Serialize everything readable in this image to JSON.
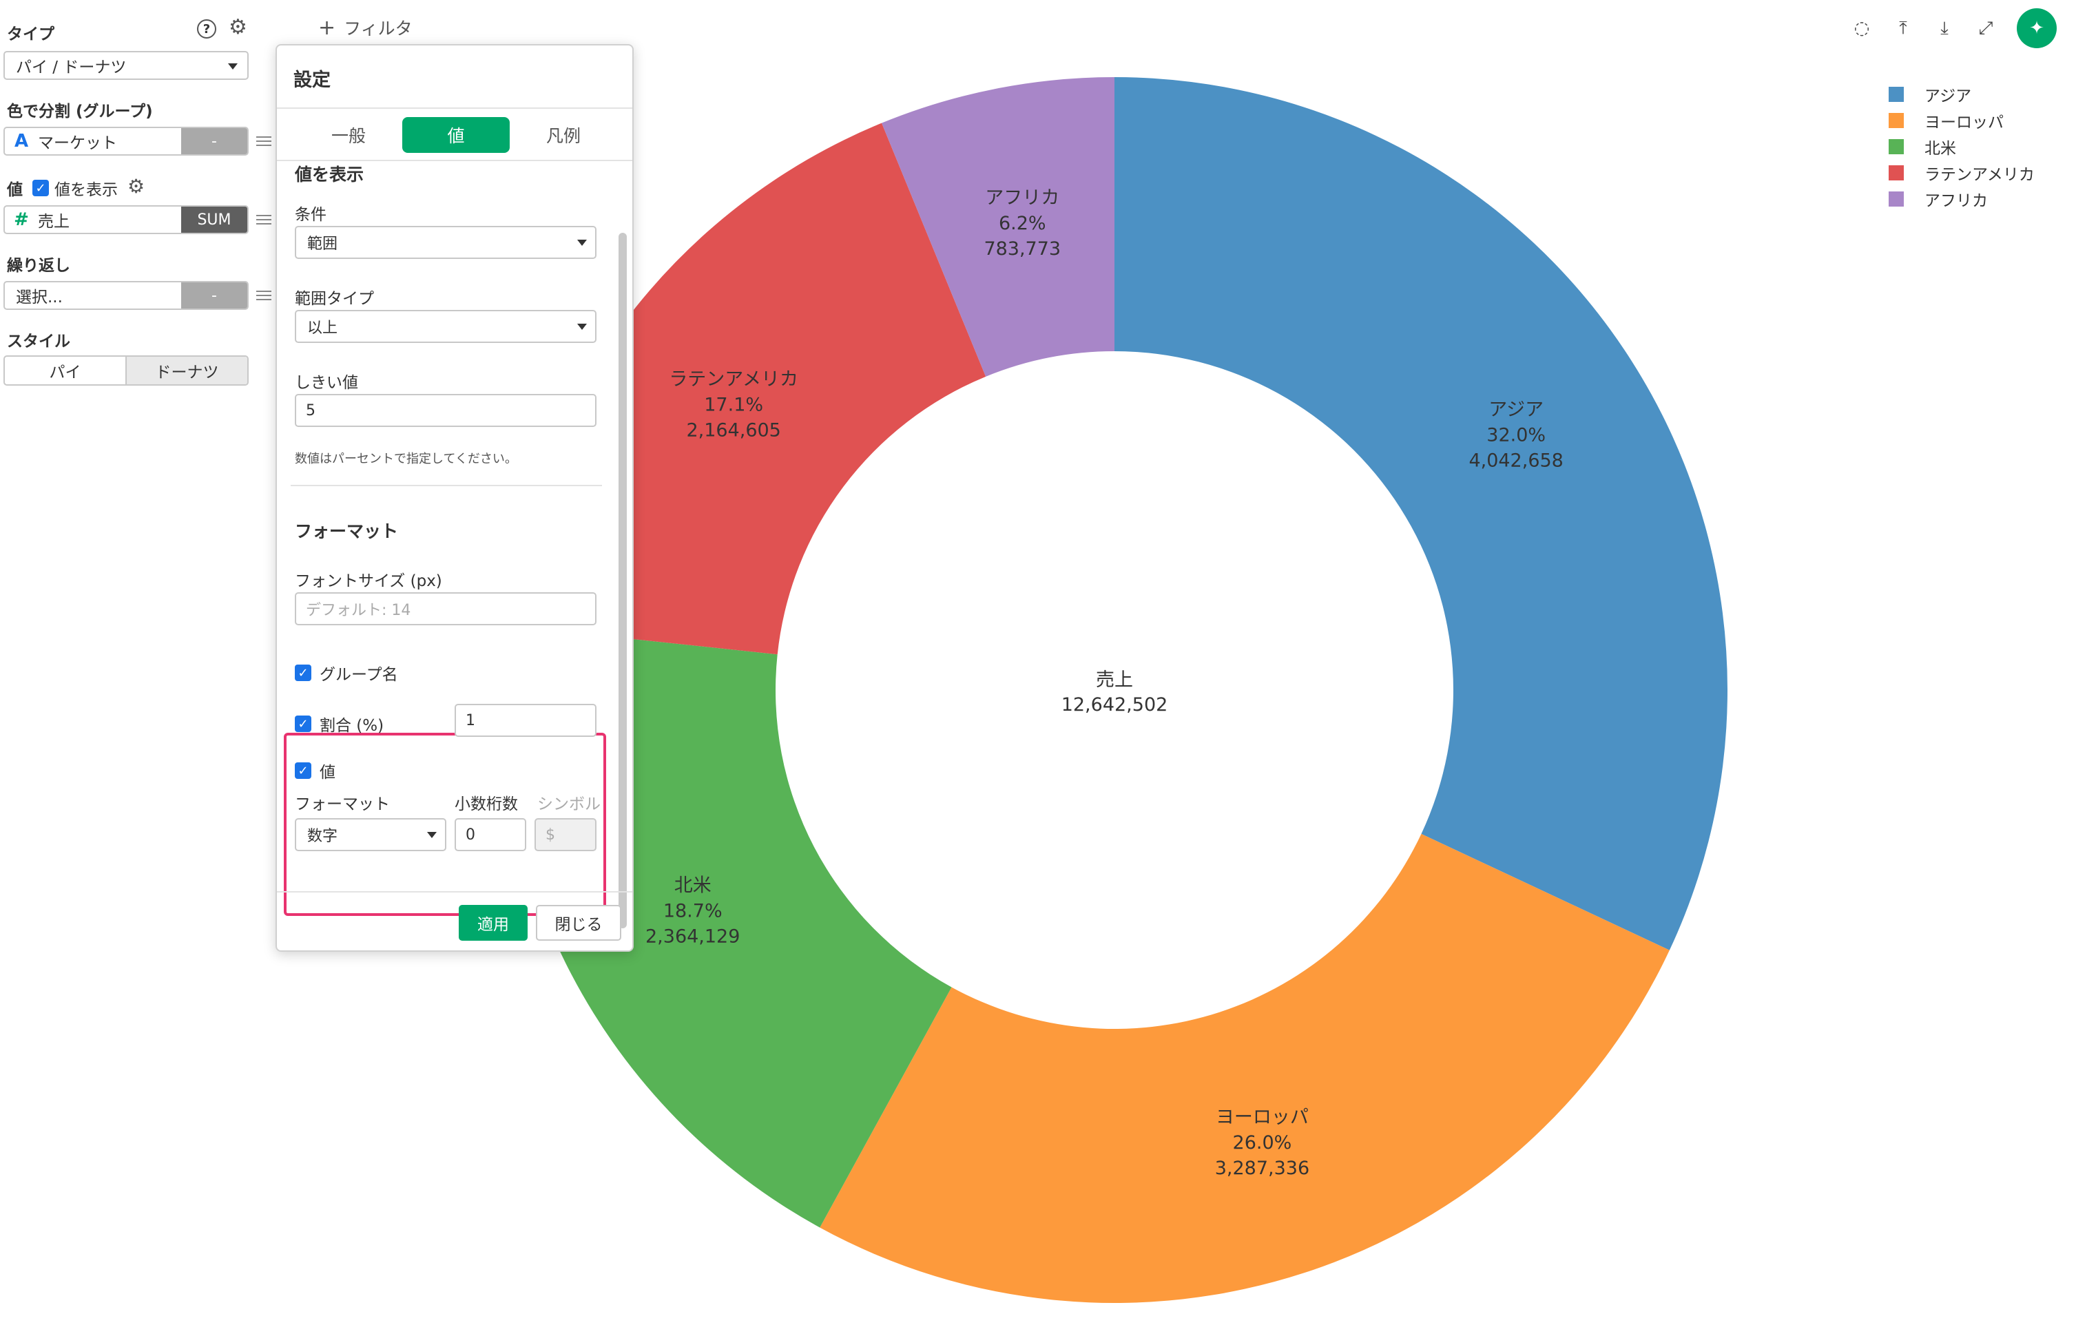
{
  "left_panel": {
    "type_label": "タイプ",
    "type_value": "パイ / ドーナツ",
    "color_split_label": "色で分割 (グループ)",
    "color_field": {
      "icon": "A",
      "name": "マーケット",
      "agg": "-"
    },
    "value_label": "値",
    "show_value_label": "値を表示",
    "value_field": {
      "icon": "#",
      "name": "売上",
      "agg": "SUM"
    },
    "repeat_label": "繰り返し",
    "repeat_field": {
      "name": "選択...",
      "agg": "-"
    },
    "style_label": "スタイル",
    "style_options": [
      "パイ",
      "ドーナツ"
    ],
    "help_icon_glyph": "?",
    "gear_icon_glyph": "⚙",
    "check_glyph": "✓"
  },
  "filter": {
    "icon": "+",
    "label": "フィルタ"
  },
  "toolbar": {
    "comment_icon": "◌",
    "upload_icon": "⤒",
    "download_icon": "⤓",
    "expand_icon": "⤢",
    "pin_icon": "✦"
  },
  "dialog": {
    "title": "設定",
    "tabs": [
      "一般",
      "値",
      "凡例"
    ],
    "section_title": "値を表示",
    "condition_label": "条件",
    "condition_value": "範囲",
    "range_type_label": "範囲タイプ",
    "range_type_value": "以上",
    "threshold_label": "しきい値",
    "threshold_value": "5",
    "threshold_help": "数値はパーセントで指定してください。",
    "format_heading": "フォーマット",
    "font_size_label": "フォントサイズ (px)",
    "font_size_placeholder": "デフォルト: 14",
    "group_name_label": "グループ名",
    "ratio_label": "割合 (%)",
    "ratio_value": "1",
    "value_check_label": "値",
    "format_label": "フォーマット",
    "decimals_label": "小数桁数",
    "symbol_label": "シンボル",
    "format_value": "数字",
    "decimals_value": "0",
    "symbol_value": "$",
    "apply_label": "適用",
    "close_label": "閉じる"
  },
  "chart_data": {
    "type": "pie",
    "style": "donut",
    "center_title": "売上",
    "center_value": "12,642,502",
    "total": 12642502,
    "legend_placement": "top-right",
    "slices": [
      {
        "name": "アジア",
        "value": 4042658,
        "pct": "32.0%",
        "value_label": "4,042,658",
        "color": "#4c91c4"
      },
      {
        "name": "ヨーロッパ",
        "value": 3287336,
        "pct": "26.0%",
        "value_label": "3,287,336",
        "color": "#fd9a3c"
      },
      {
        "name": "北米",
        "value": 2364129,
        "pct": "18.7%",
        "value_label": "2,364,129",
        "color": "#58b356"
      },
      {
        "name": "ラテンアメリカ",
        "value": 2164605,
        "pct": "17.1%",
        "value_label": "2,164,605",
        "color": "#e05252"
      },
      {
        "name": "アフリカ",
        "value": 783773,
        "pct": "6.2%",
        "value_label": "783,773",
        "color": "#a886c8"
      }
    ]
  }
}
